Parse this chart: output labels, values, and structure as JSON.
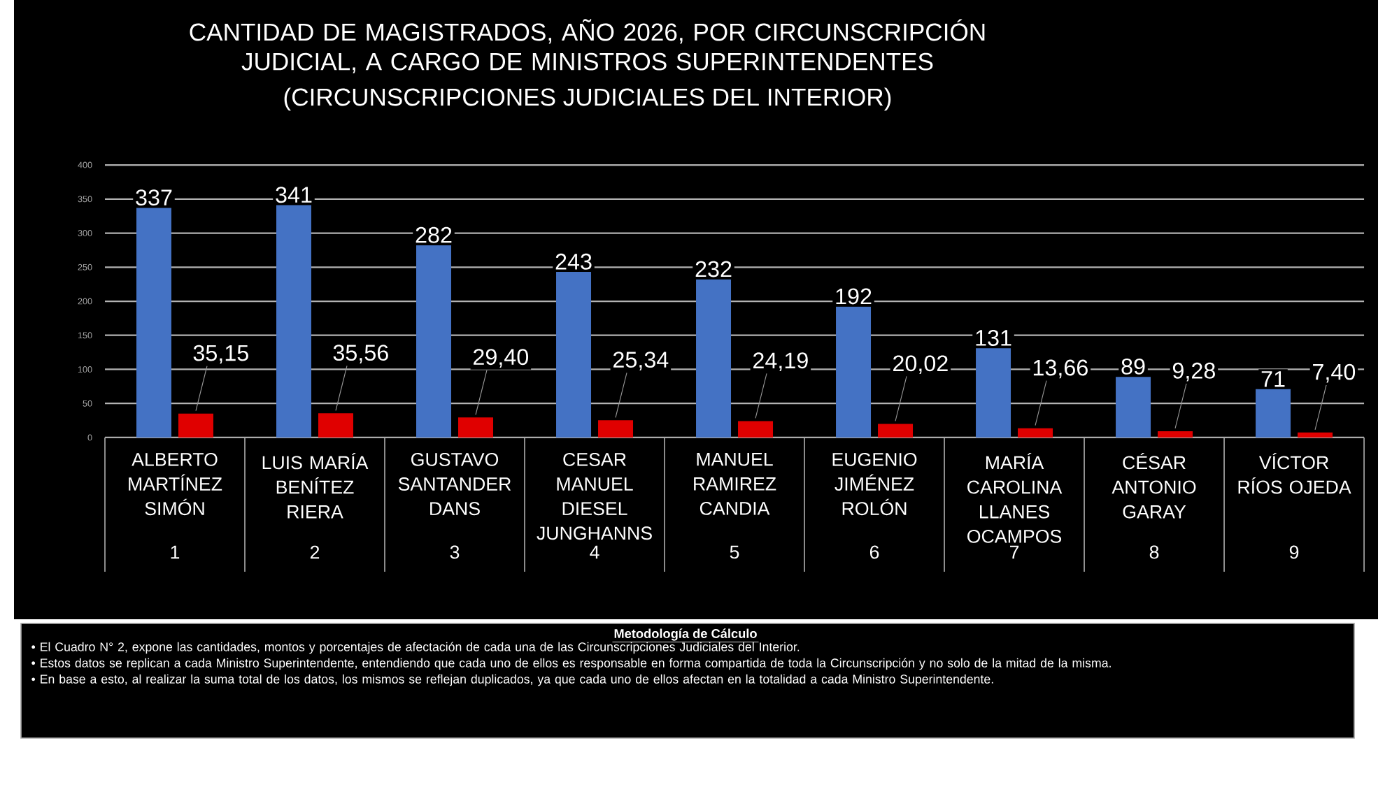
{
  "chart_data": {
    "type": "bar",
    "title": "CANTIDAD DE MAGISTRADOS, AÑO 2026, POR CIRCUNSCRIPCIÓN JUDICIAL, A CARGO DE MINISTROS SUPERINTENDENTES",
    "subtitle": "(CIRCUNSCRIPCIONES JUDICIALES DEL INTERIOR)",
    "categories": [
      "ALBERTO MARTÍNEZ SIMÓN",
      "LUIS MARÍA BENÍTEZ RIERA",
      "GUSTAVO SANTANDER DANS",
      "CESAR MANUEL DIESEL JUNGHANNS",
      "MANUEL RAMIREZ CANDIA",
      "EUGENIO JIMÉNEZ ROLÓN",
      "MARÍA CAROLINA LLANES OCAMPOS",
      "CÉSAR ANTONIO GARAY",
      "VÍCTOR RÍOS OJEDA"
    ],
    "series": [
      {
        "color": "#4472c4",
        "values": [
          337,
          341,
          282,
          243,
          232,
          192,
          131,
          89,
          71
        ],
        "value_labels": [
          "337",
          "341",
          "282",
          "243",
          "232",
          "192",
          "131",
          "89",
          "71"
        ]
      },
      {
        "color": "#e00000",
        "values": [
          35.15,
          35.56,
          29.4,
          25.34,
          24.19,
          20.02,
          13.66,
          9.28,
          7.4
        ],
        "value_labels": [
          "35,15",
          "35,56",
          "29,40",
          "25,34",
          "24,19",
          "20,02",
          "13,66",
          "9,28",
          "7,40"
        ]
      }
    ],
    "ylim": [
      0,
      400
    ],
    "yticks": [
      0,
      50,
      100,
      150,
      200,
      250,
      300,
      350,
      400
    ],
    "grid": "y",
    "annotations": [
      "1",
      "2",
      "3",
      "4",
      "5",
      "6",
      "7",
      "8",
      "9",
      "Metodología de Cálculo",
      "• El Cuadro N° 2, expone las cantidades, montos y porcentajes de afectación de cada una de las Circunscripciones Judiciales del Interior.",
      "• Estos datos se replican a cada Ministro Superintendente, entendiendo que cada uno de ellos es responsable en forma compartida de toda la Circunscripción y no solo de la mitad de la misma.",
      "• En base a esto, al realizar la suma total de los datos, los mismos se reflejan duplicados, ya que cada uno de ellos afectan en la totalidad a cada Ministro Superintendente."
    ]
  }
}
